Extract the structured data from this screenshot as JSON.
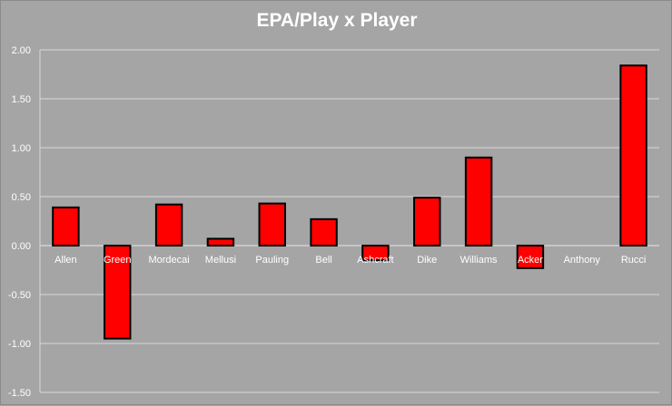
{
  "chart_data": {
    "type": "bar",
    "title": "EPA/Play x Player",
    "xlabel": "",
    "ylabel": "",
    "ylim": [
      -1.5,
      2.0
    ],
    "yticks": [
      "2.00",
      "1.50",
      "1.00",
      "0.50",
      "0.00",
      "-0.50",
      "-1.00",
      "-1.50"
    ],
    "ytick_values": [
      2.0,
      1.5,
      1.0,
      0.5,
      0.0,
      -0.5,
      -1.0,
      -1.5
    ],
    "grid": true,
    "legend": "none",
    "categories": [
      "Allen",
      "Green",
      "Mordecai",
      "Mellusi",
      "Pauling",
      "Bell",
      "Ashcraft",
      "Dike",
      "Williams",
      "Acker",
      "Anthony",
      "Rucci"
    ],
    "values": [
      0.39,
      -0.95,
      0.42,
      0.07,
      0.43,
      0.27,
      -0.15,
      0.49,
      0.9,
      -0.23,
      0.0,
      1.84
    ],
    "colors": {
      "bar_fill": "#ff0000",
      "bar_stroke": "#000000",
      "background": "#a5a5a5",
      "grid": "#d9d9d9",
      "text": "#ffffff"
    }
  }
}
